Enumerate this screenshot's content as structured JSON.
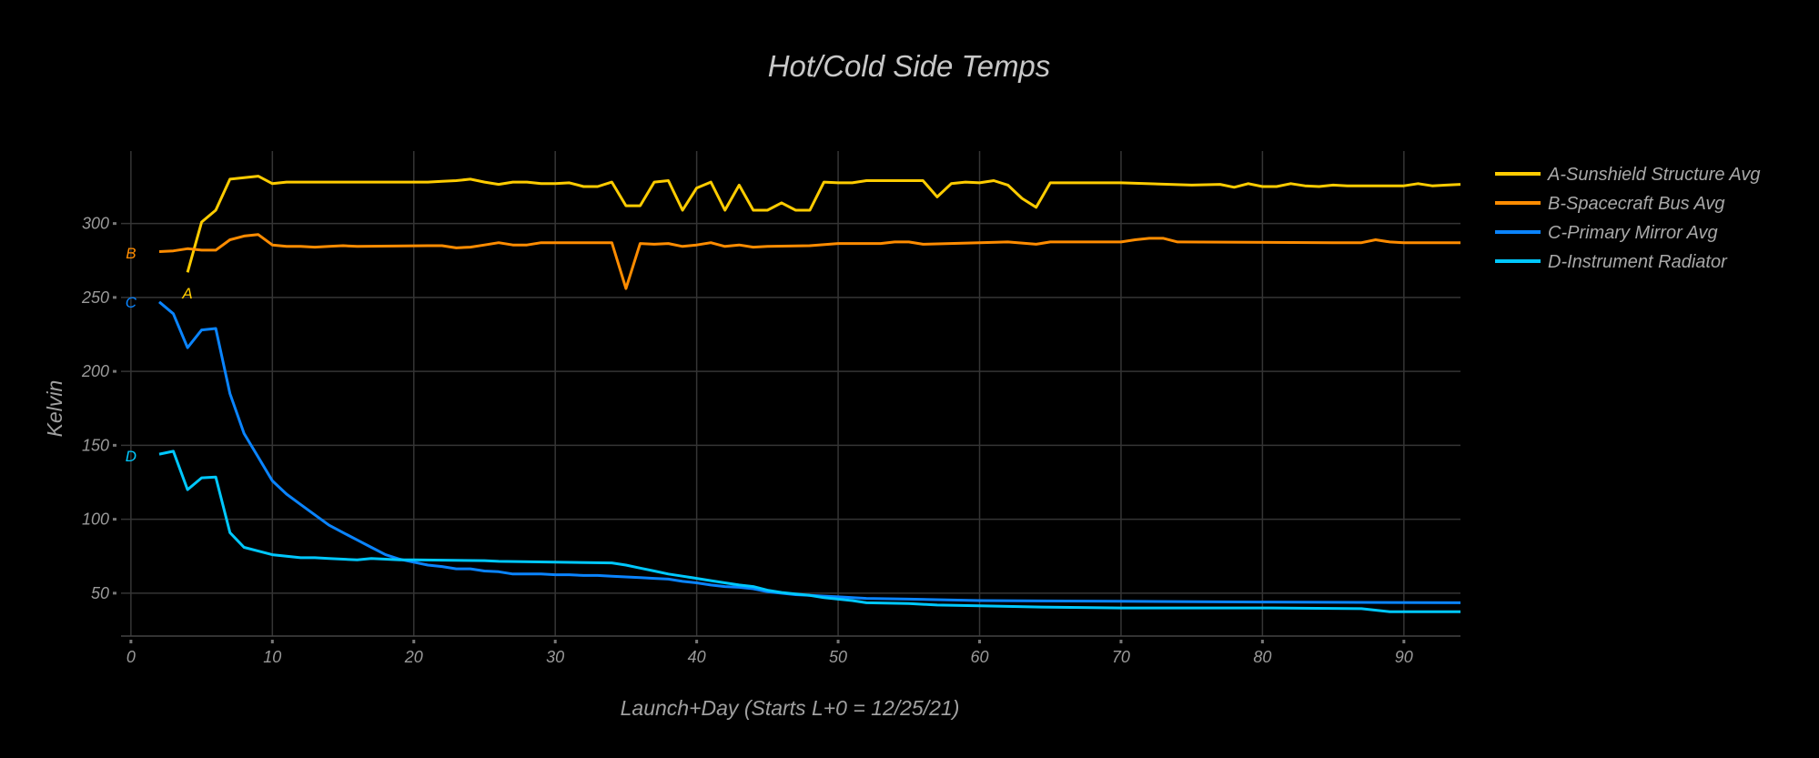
{
  "chart_data": {
    "type": "line",
    "title": "Hot/Cold Side Temps",
    "xlabel": "Launch+Day (Starts L+0 = 12/25/21)",
    "ylabel": "Kelvin",
    "xlim": [
      -0.7,
      94
    ],
    "ylim": [
      21,
      349
    ],
    "xticks": [
      0,
      10,
      20,
      30,
      40,
      50,
      60,
      70,
      80,
      90
    ],
    "yticks": [
      50,
      100,
      150,
      200,
      250,
      300
    ],
    "grid": true,
    "legend_position": "right",
    "series": [
      {
        "name": "A-Sunshield Structure Avg",
        "color": "#FFCC00",
        "x": [
          4,
          5,
          6,
          7,
          8,
          9,
          10,
          11,
          12,
          15,
          18,
          21,
          22,
          23,
          24,
          25,
          26,
          27,
          28,
          29,
          30,
          31,
          32,
          33,
          34,
          35,
          36,
          37,
          38,
          39,
          40,
          41,
          42,
          43,
          44,
          45,
          46,
          47,
          48,
          49,
          50,
          51,
          52,
          53,
          54,
          55,
          56,
          57,
          58,
          59,
          60,
          61,
          62,
          63,
          64,
          65,
          70,
          75,
          77,
          78,
          79,
          80,
          81,
          82,
          83,
          84,
          85,
          86,
          90,
          91,
          92,
          93,
          94
        ],
        "y": [
          267,
          301,
          309,
          330,
          331,
          332,
          327,
          328,
          328,
          328,
          328,
          328,
          328.5,
          329,
          330,
          328,
          326.5,
          328,
          328,
          327,
          327,
          327.5,
          325,
          325,
          328,
          312,
          312,
          328,
          329,
          309,
          324,
          328,
          309,
          326,
          309,
          309,
          314,
          309,
          309,
          328,
          327.5,
          327.5,
          329,
          329,
          329,
          329,
          329,
          318,
          327,
          328,
          327.5,
          329,
          326,
          317,
          311,
          327.5,
          327.5,
          326,
          326.5,
          324.5,
          327,
          325,
          325,
          327,
          325.5,
          325,
          326,
          325.5,
          325.5,
          327,
          325.5,
          326,
          326.5
        ]
      },
      {
        "name": "B-Spacecraft Bus Avg",
        "color": "#FF8C00",
        "x": [
          2,
          3,
          4,
          5,
          6,
          7,
          8,
          9,
          10,
          11,
          12,
          13,
          14,
          15,
          16,
          21,
          22,
          23,
          24,
          25,
          26,
          27,
          28,
          29,
          30,
          34,
          35,
          36,
          37,
          38,
          39,
          40,
          41,
          42,
          43,
          44,
          45,
          48,
          50,
          53,
          54,
          55,
          56,
          60,
          62,
          64,
          65,
          70,
          71,
          72,
          73,
          74,
          85,
          87,
          88,
          89,
          90,
          94
        ],
        "y": [
          281,
          281.5,
          283,
          282,
          282,
          289,
          291.5,
          292.5,
          285.5,
          284.5,
          284.5,
          284,
          284.5,
          285,
          284.5,
          285,
          285,
          283.5,
          284,
          285.5,
          287,
          285.5,
          285.5,
          287,
          287,
          287,
          256,
          286.5,
          286,
          286.5,
          284.5,
          285.5,
          287,
          284.5,
          285.5,
          284,
          284.5,
          285,
          286.5,
          286.5,
          287.5,
          287.5,
          286,
          287,
          287.5,
          286,
          287.5,
          287.5,
          289,
          290,
          290,
          287.5,
          287,
          287,
          289,
          287.5,
          287,
          287
        ]
      },
      {
        "name": "C-Primary Mirror Avg",
        "color": "#0A84FF",
        "x": [
          2,
          3,
          4,
          5,
          6,
          7,
          8,
          9,
          10,
          11,
          12,
          13,
          14,
          15,
          16,
          17,
          18,
          19,
          20,
          21,
          22,
          23,
          24,
          25,
          26,
          27,
          28,
          29,
          30,
          31,
          32,
          33,
          34,
          35,
          36,
          37,
          38,
          39,
          40,
          41,
          42,
          43,
          44,
          45,
          46,
          47,
          48,
          49,
          50,
          52,
          55,
          60,
          70,
          80,
          94
        ],
        "y": [
          247,
          239,
          216,
          228,
          229,
          185,
          158,
          142,
          126,
          117,
          110,
          103,
          96,
          91,
          86,
          81,
          76,
          73,
          71,
          69,
          68,
          66.5,
          66.5,
          65,
          64.5,
          63,
          63,
          63,
          62.5,
          62.5,
          62,
          62,
          61.5,
          61,
          60.5,
          60,
          59.5,
          58,
          57,
          55.5,
          54.5,
          54,
          53,
          51,
          50,
          49,
          48.5,
          48,
          47.5,
          46.5,
          46,
          45,
          44.5,
          44,
          43.5
        ]
      },
      {
        "name": "D-Instrument Radiator",
        "color": "#00C8FF",
        "x": [
          2,
          3,
          4,
          5,
          6,
          7,
          8,
          9,
          10,
          11,
          12,
          13,
          14,
          15,
          16,
          17,
          18,
          19,
          20,
          25,
          26,
          30,
          34,
          35,
          36,
          37,
          38,
          39,
          40,
          41,
          42,
          43,
          44,
          45,
          46,
          47,
          48,
          49,
          50,
          51,
          52,
          55,
          57,
          60,
          65,
          70,
          80,
          87,
          89,
          94
        ],
        "y": [
          144,
          146,
          120,
          128,
          128.5,
          91,
          81,
          78.5,
          76,
          75,
          74,
          74,
          73.5,
          73,
          72.5,
          73.5,
          73,
          72.5,
          72.5,
          72,
          71.5,
          71,
          70.5,
          69,
          67,
          65,
          63,
          61.5,
          60,
          58.5,
          57,
          55.5,
          54.5,
          52,
          50.5,
          49.5,
          48.5,
          47,
          46,
          45,
          43.5,
          43,
          42,
          41.5,
          40.5,
          40,
          40,
          39.5,
          37.5,
          37.5
        ]
      }
    ],
    "annotations": [
      {
        "text": "A",
        "x": 4,
        "y": 253,
        "color": "#FFCC00"
      },
      {
        "text": "B",
        "x": 0,
        "y": 280,
        "color": "#FF8C00"
      },
      {
        "text": "C",
        "x": 0,
        "y": 247,
        "color": "#0A84FF"
      },
      {
        "text": "D",
        "x": 0,
        "y": 143,
        "color": "#00C8FF"
      }
    ]
  }
}
